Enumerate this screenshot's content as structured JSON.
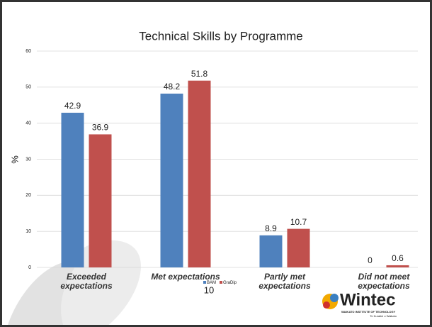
{
  "chart_data": {
    "type": "bar",
    "title": "Technical Skills by Programme",
    "y_label": "%",
    "categories": [
      "Exceeded expectations",
      "Met expectations",
      "Partly met expectations",
      "Did not meet expectations"
    ],
    "series": [
      {
        "name": "BAM",
        "color": "#4f81bd",
        "values": [
          42.9,
          48.2,
          8.9,
          0
        ]
      },
      {
        "name": "GraDip",
        "color": "#c0504d",
        "values": [
          36.9,
          51.8,
          10.7,
          0.6
        ]
      }
    ],
    "ylim": [
      0,
      60
    ],
    "yticks": [
      0,
      10,
      20,
      30,
      40,
      50,
      60
    ],
    "grid": true,
    "legend": "bottom"
  },
  "footer": {
    "page_number": "10",
    "logo": "Wintec",
    "logo_subtitle": "WAIKATO INSTITUTE OF TECHNOLOGY",
    "logo_tagline": "Te Kuratini o Waikato"
  }
}
